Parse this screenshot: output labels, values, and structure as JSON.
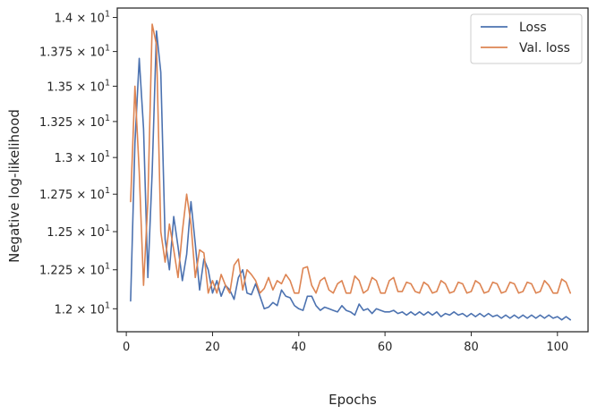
{
  "chart_data": {
    "type": "line",
    "xlabel": "Epochs",
    "ylabel": "Negative log-likelihood",
    "xlim": [
      -2.1,
      107.1
    ],
    "ylim": [
      11.855,
      14.07
    ],
    "yscale": "log",
    "grid": false,
    "legend_position": "top-right",
    "x_ticks": [
      0,
      20,
      40,
      60,
      80,
      100
    ],
    "x_tick_labels": [
      "0",
      "20",
      "40",
      "60",
      "80",
      "100"
    ],
    "y_ticks": [
      12.0,
      12.25,
      12.5,
      12.75,
      13.0,
      13.25,
      13.5,
      13.75,
      14.0
    ],
    "y_tick_labels": [
      {
        "mantissa": "1.2",
        "base": "10",
        "exp": "1"
      },
      {
        "mantissa": "1.225",
        "base": "10",
        "exp": "1"
      },
      {
        "mantissa": "1.25",
        "base": "10",
        "exp": "1"
      },
      {
        "mantissa": "1.275",
        "base": "10",
        "exp": "1"
      },
      {
        "mantissa": "1.3",
        "base": "10",
        "exp": "1"
      },
      {
        "mantissa": "1.325",
        "base": "10",
        "exp": "1"
      },
      {
        "mantissa": "1.35",
        "base": "10",
        "exp": "1"
      },
      {
        "mantissa": "1.375",
        "base": "10",
        "exp": "1"
      },
      {
        "mantissa": "1.4",
        "base": "10",
        "exp": "1"
      }
    ],
    "x_start": 1,
    "series": [
      {
        "name": "Loss",
        "color": "#4c72b0",
        "values": [
          12.05,
          13.1,
          13.7,
          13.2,
          12.2,
          12.9,
          13.9,
          13.6,
          12.45,
          12.25,
          12.6,
          12.4,
          12.18,
          12.35,
          12.7,
          12.42,
          12.12,
          12.32,
          12.25,
          12.1,
          12.18,
          12.08,
          12.15,
          12.12,
          12.06,
          12.2,
          12.25,
          12.1,
          12.09,
          12.16,
          12.08,
          12.0,
          12.01,
          12.04,
          12.02,
          12.12,
          12.08,
          12.07,
          12.02,
          12.0,
          11.99,
          12.08,
          12.08,
          12.02,
          11.99,
          12.01,
          12.0,
          11.99,
          11.98,
          12.02,
          11.99,
          11.98,
          11.96,
          12.03,
          11.99,
          12.0,
          11.97,
          12.0,
          11.99,
          11.98,
          11.98,
          11.99,
          11.97,
          11.98,
          11.96,
          11.98,
          11.96,
          11.98,
          11.96,
          11.98,
          11.96,
          11.98,
          11.95,
          11.97,
          11.96,
          11.98,
          11.96,
          11.97,
          11.95,
          11.97,
          11.95,
          11.97,
          11.95,
          11.97,
          11.95,
          11.96,
          11.94,
          11.96,
          11.94,
          11.96,
          11.94,
          11.96,
          11.94,
          11.96,
          11.94,
          11.96,
          11.94,
          11.96,
          11.94,
          11.95,
          11.93,
          11.95,
          11.93
        ]
      },
      {
        "name": "Val. loss",
        "color": "#dd8452",
        "values": [
          12.7,
          13.5,
          12.9,
          12.15,
          12.7,
          13.95,
          13.8,
          12.5,
          12.3,
          12.55,
          12.38,
          12.2,
          12.5,
          12.75,
          12.55,
          12.2,
          12.38,
          12.36,
          12.1,
          12.18,
          12.1,
          12.22,
          12.15,
          12.1,
          12.28,
          12.32,
          12.12,
          12.25,
          12.22,
          12.18,
          12.1,
          12.13,
          12.2,
          12.12,
          12.18,
          12.16,
          12.22,
          12.18,
          12.1,
          12.1,
          12.26,
          12.27,
          12.15,
          12.1,
          12.18,
          12.2,
          12.12,
          12.1,
          12.16,
          12.18,
          12.1,
          12.1,
          12.21,
          12.18,
          12.1,
          12.12,
          12.2,
          12.18,
          12.1,
          12.1,
          12.18,
          12.2,
          12.11,
          12.11,
          12.17,
          12.16,
          12.11,
          12.1,
          12.17,
          12.15,
          12.1,
          12.11,
          12.18,
          12.16,
          12.1,
          12.11,
          12.17,
          12.16,
          12.1,
          12.11,
          12.18,
          12.16,
          12.1,
          12.11,
          12.17,
          12.16,
          12.1,
          12.11,
          12.17,
          12.16,
          12.1,
          12.11,
          12.17,
          12.16,
          12.1,
          12.11,
          12.18,
          12.15,
          12.1,
          12.1,
          12.19,
          12.17,
          12.1
        ]
      }
    ]
  }
}
